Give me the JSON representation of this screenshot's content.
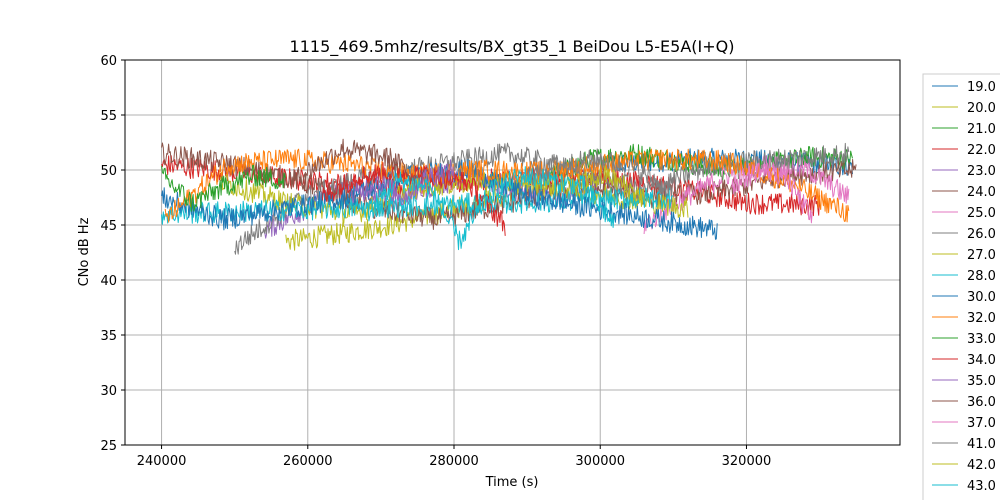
{
  "chart_data": {
    "type": "line",
    "title": "1115_469.5mhz/results/BX_gt35_1 BeiDou L5-E5A(I+Q)",
    "xlabel": "Time (s)",
    "ylabel": "CNo dB Hz",
    "xlim": [
      235000,
      341000
    ],
    "ylim": [
      25,
      60
    ],
    "xticks": [
      "240000",
      "260000",
      "280000",
      "300000",
      "320000"
    ],
    "yticks": [
      "25",
      "30",
      "35",
      "40",
      "45",
      "50",
      "55",
      "60"
    ],
    "grid": true,
    "legend_position": "right, outside plot",
    "series": [
      {
        "name": "19.0",
        "color": "#1f77b4",
        "start": 301000,
        "end": 334500,
        "values": [
          50.5,
          50.8,
          51.0,
          50.9,
          50.6,
          50.4
        ]
      },
      {
        "name": "20.0",
        "color": "#bcbd22",
        "start": 257000,
        "end": 300000,
        "values": [
          43.5,
          44.2,
          45.0,
          46.2,
          47.5,
          48.8,
          49.5
        ]
      },
      {
        "name": "21.0",
        "color": "#2ca02c",
        "start": 293000,
        "end": 334500,
        "values": [
          49.5,
          51.0,
          51.5,
          50.8,
          50.0,
          50.5,
          51.2,
          51.0
        ]
      },
      {
        "name": "22.0",
        "color": "#d62728",
        "start": 240000,
        "end": 330000,
        "values": [
          50.5,
          49.8,
          49.0,
          48.5,
          49.0,
          49.2,
          49.3,
          48.5,
          47.0,
          46.8
        ]
      },
      {
        "name": "23.0",
        "color": "#9467bd",
        "start": 254000,
        "end": 300000,
        "values": [
          44.5,
          46.5,
          48.5,
          47.0,
          48.5,
          49.5,
          48.0,
          47.5,
          48.5
        ]
      },
      {
        "name": "24.0",
        "color": "#8c564b",
        "start": 240000,
        "end": 335000,
        "values": [
          51.5,
          50.5,
          49.0,
          46.5,
          45.5,
          47.0,
          48.5,
          47.5,
          48.0,
          49.5,
          50.0
        ]
      },
      {
        "name": "25.0",
        "color": "#e377c2",
        "start": 306000,
        "end": 334000,
        "values": [
          45.0,
          47.5,
          49.5,
          50.5,
          50.0,
          47.5
        ]
      },
      {
        "name": "26.0",
        "color": "#7f7f7f",
        "start": 250000,
        "end": 334000,
        "values": [
          43.0,
          47.5,
          49.5,
          50.5,
          51.5,
          50.0,
          48.0,
          50.5,
          51.0,
          51.5
        ]
      },
      {
        "name": "27.0",
        "color": "#bcbd22",
        "start": 248000,
        "end": 312000,
        "values": [
          49.0,
          47.0,
          46.0,
          48.5,
          49.0,
          48.5,
          47.5,
          46.5
        ]
      },
      {
        "name": "28.0",
        "color": "#17becf",
        "start": 240000,
        "end": 310000,
        "values": [
          46.0,
          46.3,
          46.6,
          46.9,
          47.2,
          47.5
        ]
      },
      {
        "name": "30.0",
        "color": "#1f77b4",
        "start": 240000,
        "end": 316000,
        "values": [
          47.5,
          45.5,
          46.5,
          47.5,
          49.5,
          50.0,
          47.5,
          46.5,
          45.5,
          44.5
        ]
      },
      {
        "name": "32.0",
        "color": "#ff7f0e",
        "start": 240500,
        "end": 334000,
        "values": [
          45.5,
          50.5,
          51.0,
          50.5,
          49.5,
          50.0,
          49.8,
          50.5,
          51.0,
          50.8,
          49.0,
          46.0
        ]
      },
      {
        "name": "33.0",
        "color": "#2ca02c",
        "start": 240000,
        "end": 257000,
        "values": [
          49.5,
          47.0,
          48.5,
          49.5,
          49.0
        ]
      },
      {
        "name": "34.0",
        "color": "#d62728",
        "start": 262000,
        "end": 287000,
        "values": [
          47.5,
          49.5,
          49.8,
          49.5,
          48.8,
          45.0
        ]
      },
      {
        "name": "35.0",
        "color": "#9467bd",
        "start": 266000,
        "end": 280000,
        "values": [
          47.5,
          49.0,
          47.5,
          49.5,
          50.0
        ]
      },
      {
        "name": "36.0",
        "color": "#8c564b",
        "start": 258000,
        "end": 275000,
        "values": [
          49.0,
          50.5,
          52.0,
          51.5,
          51.0,
          49.0
        ]
      },
      {
        "name": "37.0",
        "color": "#e377c2",
        "start": 318000,
        "end": 329000,
        "values": [
          48.5,
          50.0,
          49.5,
          45.5
        ]
      },
      {
        "name": "41.0",
        "color": "#7f7f7f",
        "start": 290000,
        "end": 310000,
        "values": [
          49.5,
          50.5,
          51.0,
          50.0,
          48.0
        ]
      },
      {
        "name": "42.0",
        "color": "#bcbd22",
        "start": 296000,
        "end": 306000,
        "values": [
          48.5,
          49.5,
          47.5
        ]
      },
      {
        "name": "43.0",
        "color": "#17becf",
        "start": 268000,
        "end": 302000,
        "values": [
          46.0,
          49.0,
          48.5,
          43.5,
          48.0,
          49.5,
          49.0,
          48.5,
          45.0
        ]
      }
    ]
  }
}
